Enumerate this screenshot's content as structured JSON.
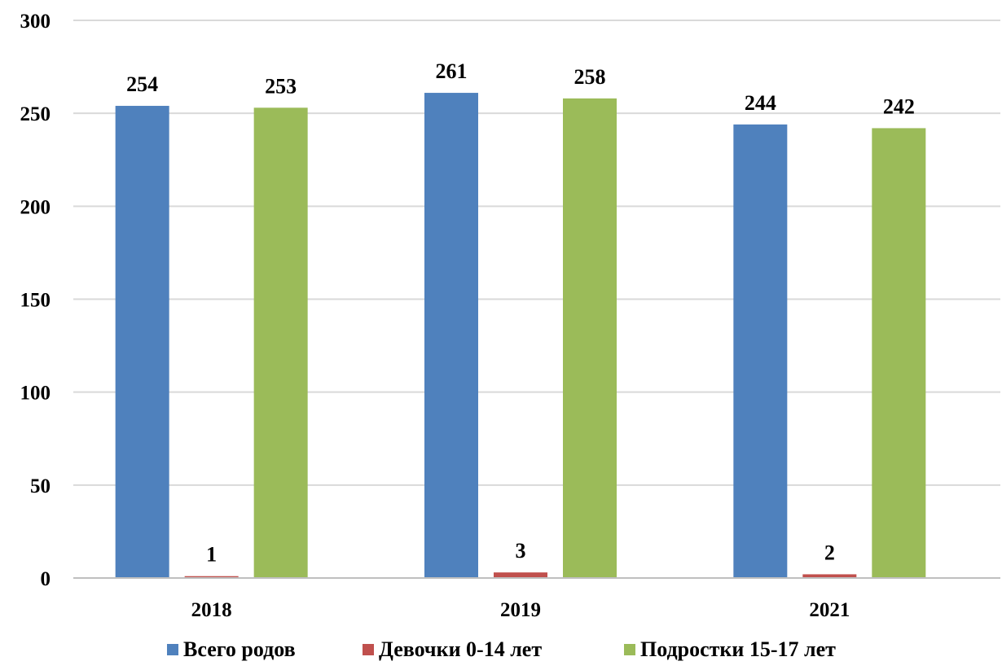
{
  "chart_data": {
    "type": "bar",
    "title": "",
    "xlabel": "",
    "ylabel": "",
    "categories": [
      "2018",
      "2019",
      "2021"
    ],
    "series": [
      {
        "name": "Всего родов",
        "values": [
          254,
          261,
          244
        ],
        "color": "#4f81bd"
      },
      {
        "name": "Девочки 0-14 лет",
        "values": [
          1,
          3,
          2
        ],
        "color": "#c0504d"
      },
      {
        "name": "Подростки  15-17 лет",
        "values": [
          253,
          258,
          242
        ],
        "color": "#9bbb59"
      }
    ],
    "ylim": [
      0,
      300
    ],
    "yticks": [
      0,
      50,
      100,
      150,
      200,
      250,
      300
    ],
    "grid": true,
    "legend": "bottom",
    "data_labels": true
  }
}
